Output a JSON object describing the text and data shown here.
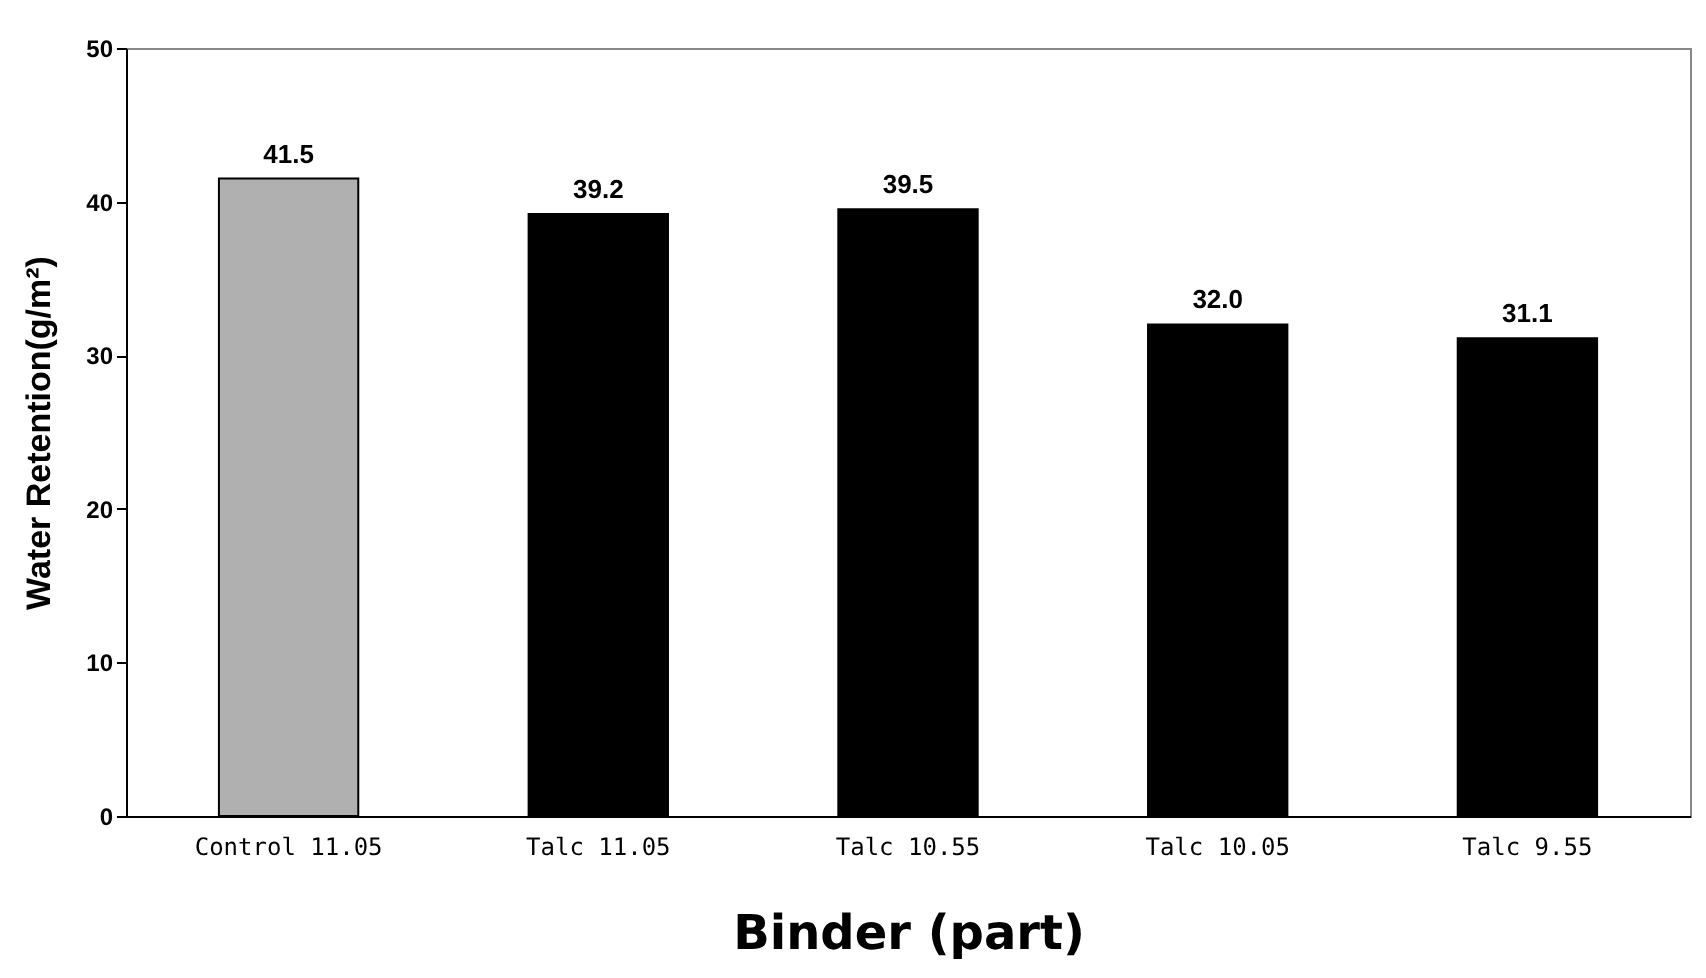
{
  "chart_data": {
    "type": "bar",
    "xlabel": "Binder (part)",
    "ylabel": "Water Retention(g/m²)",
    "categories": [
      "Control 11.05",
      "Talc 11.05",
      "Talc 10.55",
      "Talc 10.05",
      "Talc 9.55"
    ],
    "values": [
      41.5,
      39.2,
      39.5,
      32.0,
      31.1
    ],
    "colors": [
      "#b0b0b0",
      "#000000",
      "#000000",
      "#000000",
      "#000000"
    ],
    "value_labels": [
      "41.5",
      "39.2",
      "39.5",
      "32.0",
      "31.1"
    ],
    "ylim": [
      0,
      50
    ],
    "yticks": [
      0,
      10,
      20,
      30,
      40,
      50
    ]
  }
}
